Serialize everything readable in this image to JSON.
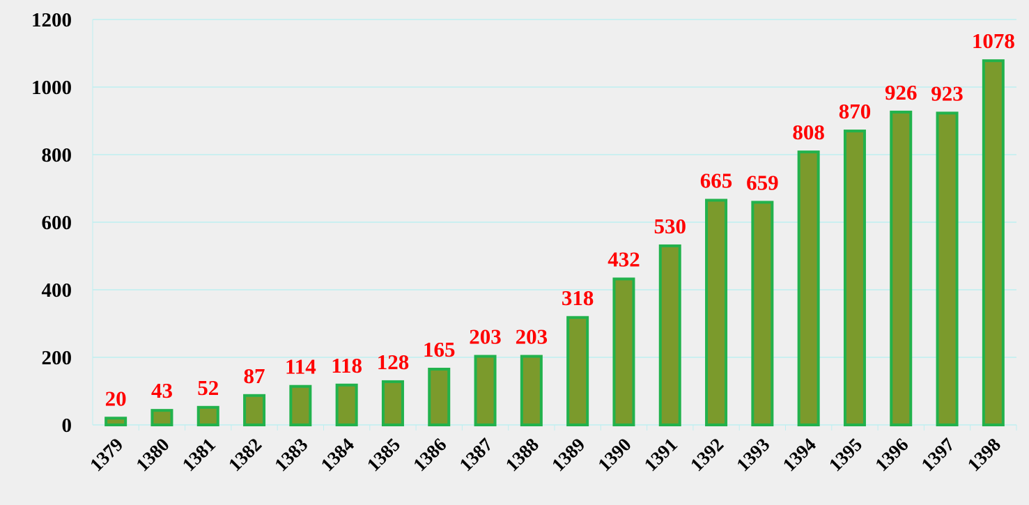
{
  "chart_data": {
    "type": "bar",
    "categories": [
      "1379",
      "1380",
      "1381",
      "1382",
      "1383",
      "1384",
      "1385",
      "1386",
      "1387",
      "1388",
      "1389",
      "1390",
      "1391",
      "1392",
      "1393",
      "1394",
      "1395",
      "1396",
      "1397",
      "1398"
    ],
    "values": [
      20,
      43,
      52,
      87,
      114,
      118,
      128,
      165,
      203,
      203,
      318,
      432,
      530,
      665,
      659,
      808,
      870,
      926,
      923,
      1078
    ],
    "color": "#7b9a2c",
    "edge_color": "#22b24c",
    "label_color": "#ff0000",
    "ylim": [
      0,
      1200
    ],
    "yticks": [
      0,
      200,
      400,
      600,
      800,
      1000,
      1200
    ],
    "grid": true
  }
}
